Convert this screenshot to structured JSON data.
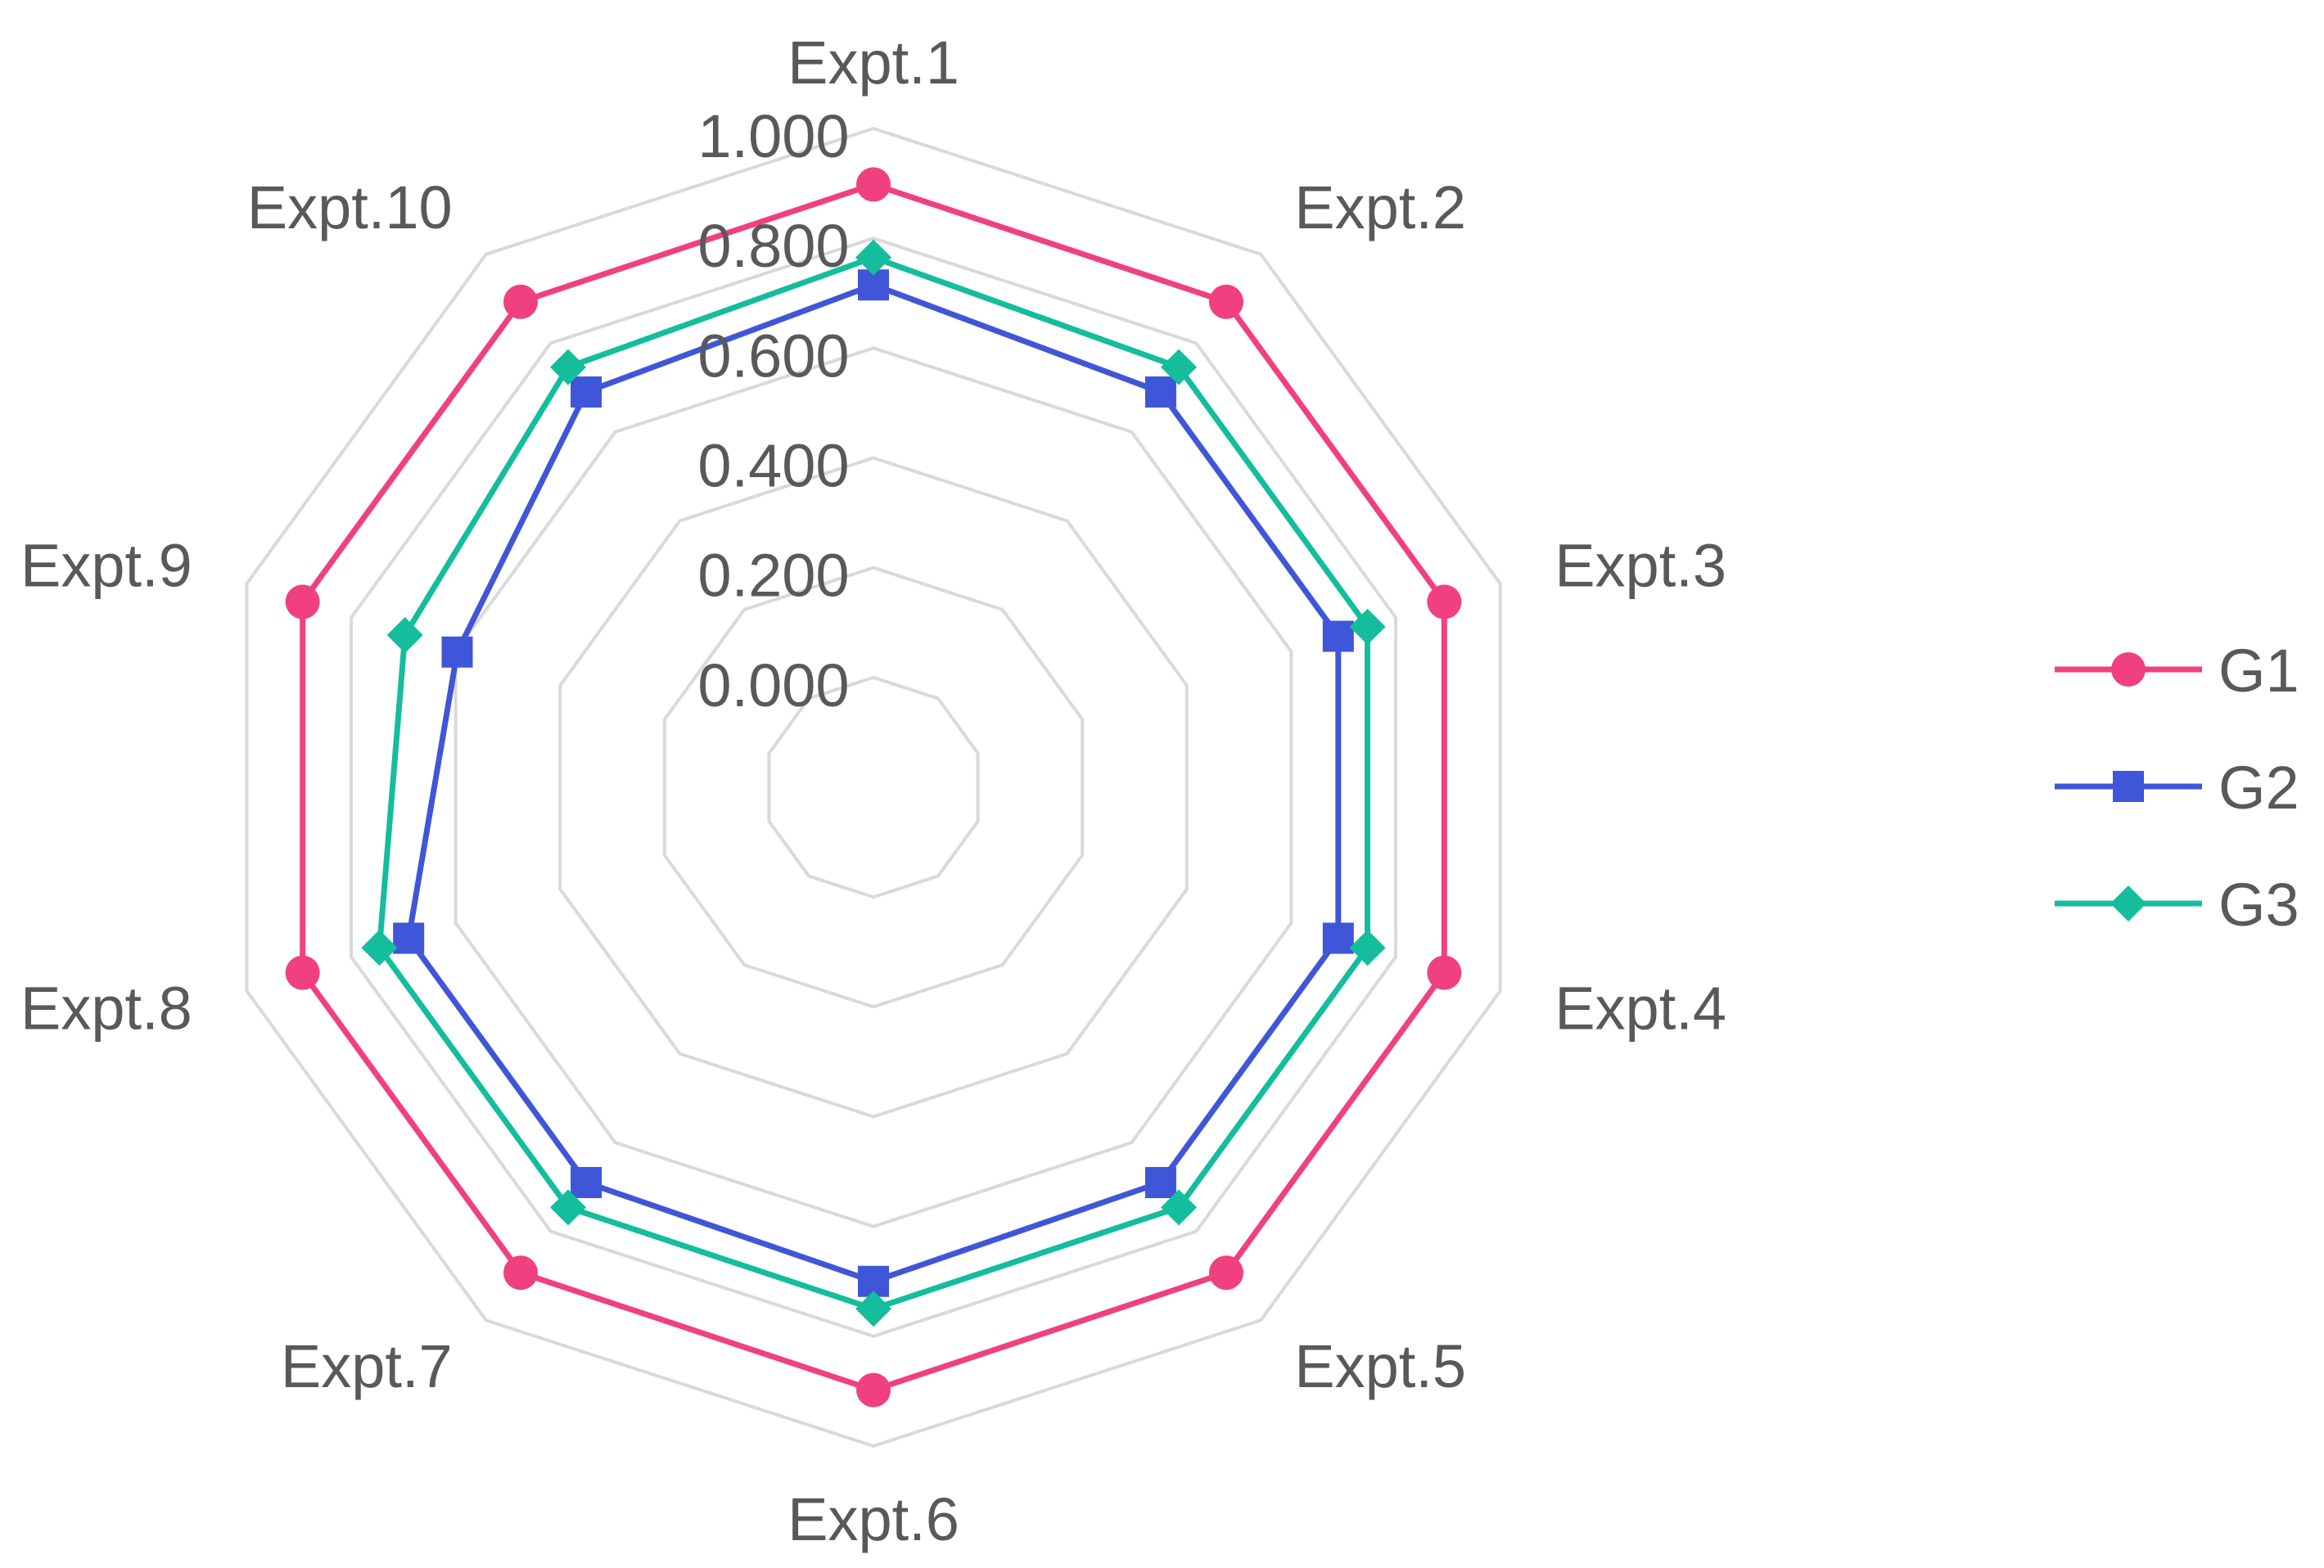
{
  "chart_data": {
    "type": "radar",
    "categories": [
      "Expt.1",
      "Expt.2",
      "Expt.3",
      "Expt.4",
      "Expt.5",
      "Expt.6",
      "Expt.7",
      "Expt.8",
      "Expt.9",
      "Expt.10"
    ],
    "radial_ticks": [
      "0.000",
      "0.200",
      "0.400",
      "0.600",
      "0.800",
      "1.000"
    ],
    "rlim": [
      0,
      1
    ],
    "grid": true,
    "legend_position": "right",
    "series": [
      {
        "name": "G1",
        "marker": "circle",
        "color": "#f0407f",
        "values": [
          0.898,
          0.893,
          0.893,
          0.893,
          0.893,
          0.898,
          0.893,
          0.893,
          0.893,
          0.893
        ]
      },
      {
        "name": "G2",
        "marker": "square",
        "color": "#3f56d8",
        "values": [
          0.715,
          0.69,
          0.69,
          0.69,
          0.69,
          0.7,
          0.69,
          0.69,
          0.597,
          0.69
        ]
      },
      {
        "name": "G3",
        "marker": "diamond",
        "color": "#14bd9c",
        "values": [
          0.765,
          0.746,
          0.746,
          0.746,
          0.746,
          0.75,
          0.746,
          0.746,
          0.697,
          0.746
        ]
      }
    ]
  }
}
